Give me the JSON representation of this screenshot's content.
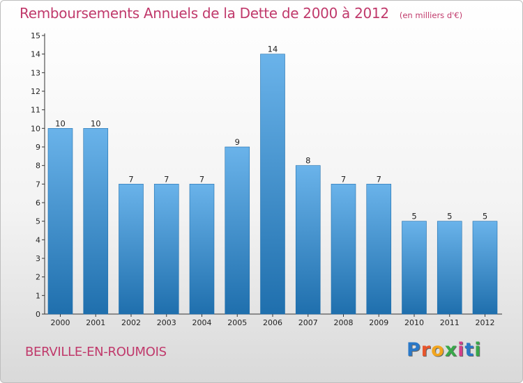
{
  "title": "Remboursements Annuels de la Dette de 2000 à 2012",
  "unit_note": "(en milliers d'€)",
  "location": "BERVILLE-EN-ROUMOIS",
  "brand": {
    "letters": [
      "P",
      "r",
      "o",
      "x",
      "i",
      "t",
      "i"
    ],
    "colors": [
      "#2a78c8",
      "#e8552c",
      "#f2a51e",
      "#39a84a",
      "#d23f8a",
      "#2a78c8",
      "#39a84a"
    ]
  },
  "colors": {
    "bar": "#4a98d6",
    "bar_light": "#6ab3ea",
    "bar_dark": "#1f6fad",
    "title": "#c0396b"
  },
  "chart_data": {
    "type": "bar",
    "title": "Remboursements Annuels de la Dette de 2000 à 2012",
    "ylabel": "",
    "xlabel": "",
    "categories": [
      "2000",
      "2001",
      "2002",
      "2003",
      "2004",
      "2005",
      "2006",
      "2007",
      "2008",
      "2009",
      "2010",
      "2011",
      "2012"
    ],
    "values": [
      10,
      10,
      7,
      7,
      7,
      9,
      14,
      8,
      7,
      7,
      5,
      5,
      5
    ],
    "ylim": [
      0,
      15
    ],
    "yticks": [
      "0",
      "1",
      "2",
      "3",
      "4",
      "5",
      "6",
      "7",
      "8",
      "9",
      "10",
      "11",
      "12",
      "13",
      "14",
      "15"
    ],
    "grid": false,
    "legend": "none"
  }
}
